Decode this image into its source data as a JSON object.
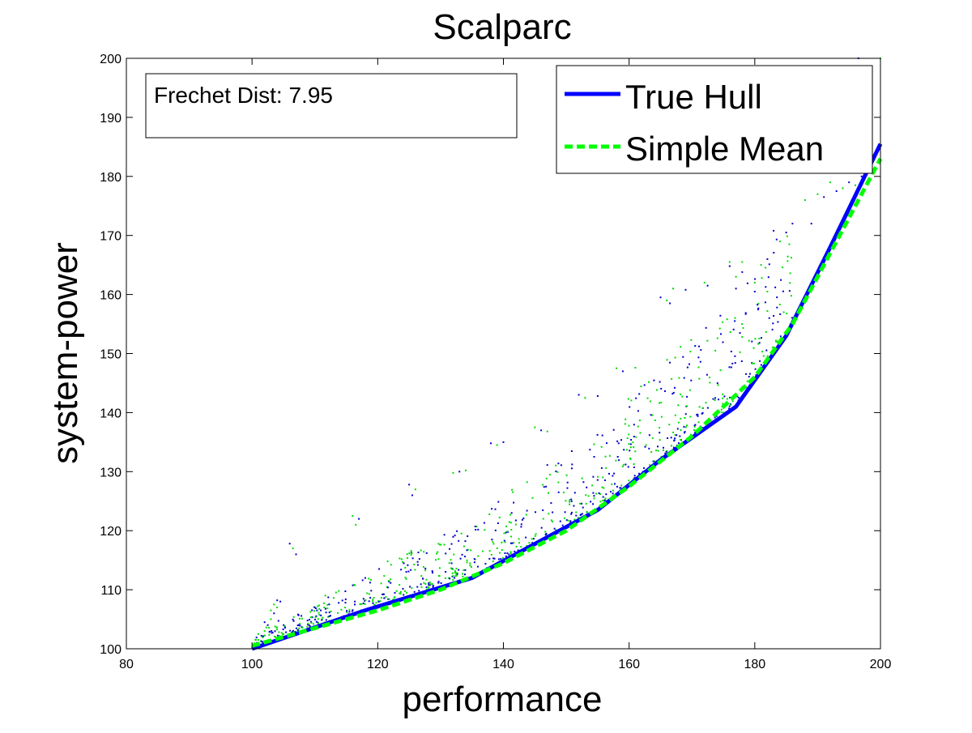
{
  "chart_data": {
    "type": "scatter",
    "title": "Scalparc",
    "xlabel": "performance",
    "ylabel": "system-power",
    "xlim": [
      80,
      200
    ],
    "ylim": [
      100,
      200
    ],
    "xticks": [
      80,
      100,
      120,
      140,
      160,
      180,
      200
    ],
    "yticks": [
      100,
      110,
      120,
      130,
      140,
      150,
      160,
      170,
      180,
      190,
      200
    ],
    "grid": false,
    "legend_position": "top-right",
    "annotation": "Frechet Dist: 7.95",
    "lines": [
      {
        "name": "True Hull",
        "color": "#0000ff",
        "style": "solid",
        "x": [
          100,
          118,
          135,
          155,
          165,
          177,
          185,
          192,
          200
        ],
        "y": [
          100,
          106.5,
          112,
          123.5,
          132,
          141,
          153,
          168,
          185.5
        ]
      },
      {
        "name": "Simple Mean",
        "color": "#00ff00",
        "style": "dashed",
        "x": [
          100,
          110,
          120,
          130,
          140,
          150,
          160,
          170,
          180,
          186,
          192,
          200
        ],
        "y": [
          100.5,
          103.5,
          106.5,
          110,
          114.5,
          120,
          127.5,
          136,
          146,
          155,
          167,
          183
        ]
      }
    ],
    "scatter_series": [
      {
        "name": "",
        "color": "#0000cc"
      },
      {
        "name": "",
        "color": "#00dd00"
      }
    ],
    "scatter_points": [
      [
        100.5,
        100.8
      ],
      [
        101,
        101.5
      ],
      [
        101.5,
        102.2
      ],
      [
        102,
        103
      ],
      [
        102.5,
        104
      ],
      [
        103,
        105
      ],
      [
        103.5,
        106
      ],
      [
        104,
        107
      ],
      [
        104.5,
        108
      ],
      [
        101,
        102.5
      ],
      [
        102,
        104.5
      ],
      [
        103,
        106.5
      ],
      [
        104,
        108.2
      ],
      [
        103.5,
        107.5
      ],
      [
        106,
        117.8
      ],
      [
        106.5,
        117
      ],
      [
        107,
        116
      ],
      [
        116,
        122.5
      ],
      [
        117,
        122
      ],
      [
        116.5,
        121
      ],
      [
        125,
        127.8
      ],
      [
        126,
        127
      ],
      [
        125.5,
        126
      ],
      [
        132,
        129.8
      ],
      [
        133,
        130
      ],
      [
        134,
        130.2
      ],
      [
        138,
        134.8
      ],
      [
        139,
        134.5
      ],
      [
        140,
        135
      ],
      [
        145,
        137.5
      ],
      [
        146,
        137
      ],
      [
        147,
        136.8
      ],
      [
        152,
        143
      ],
      [
        153,
        142.5
      ],
      [
        155,
        142.8
      ],
      [
        158,
        147.5
      ],
      [
        159,
        147
      ],
      [
        161,
        147.6
      ],
      [
        165,
        159.5
      ],
      [
        166,
        159
      ],
      [
        166.5,
        158.5
      ],
      [
        167,
        161
      ],
      [
        169,
        160.8
      ],
      [
        172,
        162
      ],
      [
        172.5,
        161.5
      ],
      [
        176,
        165.5
      ],
      [
        176,
        164.8
      ],
      [
        177,
        163
      ],
      [
        178,
        163.8
      ],
      [
        178,
        165.5
      ],
      [
        177,
        161
      ],
      [
        180,
        162
      ],
      [
        180,
        160.5
      ],
      [
        181,
        165
      ],
      [
        182,
        166
      ],
      [
        182,
        160.5
      ],
      [
        183,
        170.8
      ],
      [
        184,
        169
      ],
      [
        185,
        170.5
      ],
      [
        185.5,
        168.5
      ],
      [
        186,
        172
      ],
      [
        188,
        176
      ],
      [
        189,
        172
      ],
      [
        190,
        177
      ],
      [
        191,
        176.5
      ],
      [
        192,
        179
      ],
      [
        193,
        177.5
      ],
      [
        194,
        178
      ],
      [
        195,
        179
      ],
      [
        196,
        178.5
      ],
      [
        197,
        180
      ],
      [
        198,
        181
      ],
      [
        196.5,
        200
      ],
      [
        200,
        200
      ]
    ]
  }
}
